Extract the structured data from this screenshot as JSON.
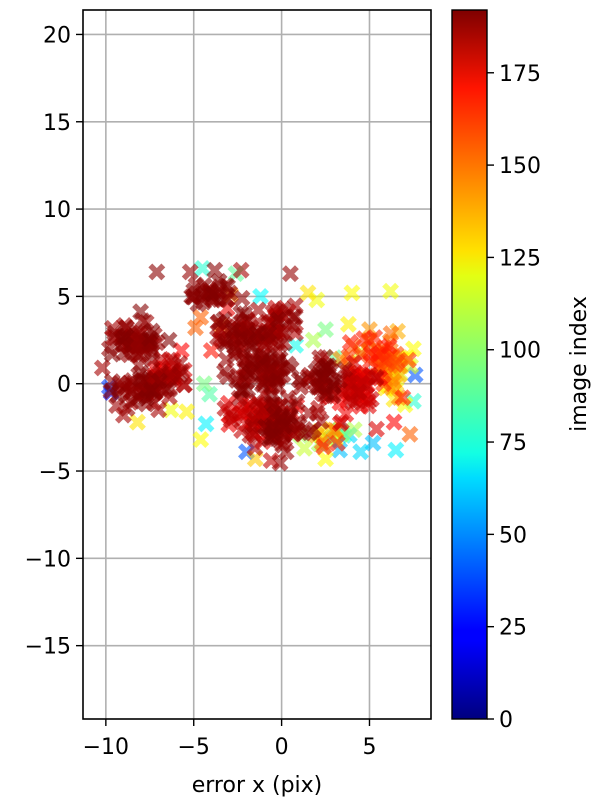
{
  "chart_data": {
    "type": "scatter",
    "title": "",
    "xlabel": "error x (pix)",
    "ylabel": "",
    "xlim": [
      -11.3,
      8.5
    ],
    "ylim": [
      -19.2,
      21.4
    ],
    "x_ticks": [
      -10,
      -5,
      0,
      5
    ],
    "x_tick_labels": [
      "−10",
      "−5",
      "0",
      "5"
    ],
    "y_ticks": [
      20,
      15,
      10,
      5,
      0,
      -5,
      -10,
      -15
    ],
    "y_tick_labels": [
      "20",
      "15",
      "10",
      "5",
      "0",
      "−5",
      "−10",
      "−15"
    ],
    "grid": true,
    "marker": "x",
    "colormap": "jet",
    "colorbar": {
      "label": "image index",
      "range": [
        0,
        192
      ],
      "ticks": [
        0,
        25,
        50,
        75,
        100,
        125,
        150,
        175
      ],
      "tick_labels": [
        "0",
        "25",
        "50",
        "75",
        "100",
        "125",
        "150",
        "175"
      ]
    },
    "points": [
      {
        "x": -7.1,
        "y": 6.4,
        "c": 190
      },
      {
        "x": -5.2,
        "y": 6.4,
        "c": 188
      },
      {
        "x": -3.8,
        "y": 6.5,
        "c": 190
      },
      {
        "x": -2.3,
        "y": 6.5,
        "c": 185
      },
      {
        "x": 0.5,
        "y": 6.3,
        "c": 188
      },
      {
        "x": -4.5,
        "y": 6.6,
        "c": 80
      },
      {
        "x": -2.6,
        "y": 6.3,
        "c": 90
      },
      {
        "x": 4.0,
        "y": 5.2,
        "c": 120
      },
      {
        "x": 6.2,
        "y": 5.3,
        "c": 118
      },
      {
        "x": 1.5,
        "y": 5.2,
        "c": 125
      },
      {
        "x": 2.0,
        "y": 4.8,
        "c": 118
      },
      {
        "x": -1.2,
        "y": 5.0,
        "c": 72
      },
      {
        "x": -2.9,
        "y": 5.1,
        "c": 140
      },
      {
        "x": -9.8,
        "y": 2.0,
        "c": 188
      },
      {
        "x": -10.2,
        "y": 0.9,
        "c": 185
      },
      {
        "x": -9.5,
        "y": 2.9,
        "c": 190
      },
      {
        "x": -9.7,
        "y": -0.5,
        "c": 20
      },
      {
        "x": -9.8,
        "y": -0.2,
        "c": 35
      },
      {
        "x": -9.0,
        "y": -1.8,
        "c": 185
      },
      {
        "x": -8.2,
        "y": -2.2,
        "c": 125
      },
      {
        "x": -6.3,
        "y": -1.5,
        "c": 118
      },
      {
        "x": -5.4,
        "y": -1.6,
        "c": 122
      },
      {
        "x": -4.3,
        "y": -2.3,
        "c": 70
      },
      {
        "x": -4.1,
        "y": -0.6,
        "c": 88
      },
      {
        "x": -4.4,
        "y": 0.0,
        "c": 95
      },
      {
        "x": -5.7,
        "y": 1.9,
        "c": 168
      },
      {
        "x": -4.6,
        "y": 3.8,
        "c": 150
      },
      {
        "x": -3.1,
        "y": 4.3,
        "c": 172
      },
      {
        "x": -2.0,
        "y": -3.9,
        "c": 40
      },
      {
        "x": -1.5,
        "y": -4.3,
        "c": 130
      },
      {
        "x": -0.6,
        "y": -4.4,
        "c": 180
      },
      {
        "x": 1.3,
        "y": -3.7,
        "c": 110
      },
      {
        "x": 2.5,
        "y": -4.3,
        "c": 120
      },
      {
        "x": 3.3,
        "y": -3.8,
        "c": 60
      },
      {
        "x": 4.5,
        "y": -3.9,
        "c": 65
      },
      {
        "x": 5.2,
        "y": -3.4,
        "c": 60
      },
      {
        "x": 6.5,
        "y": -3.8,
        "c": 70
      },
      {
        "x": 7.3,
        "y": -2.9,
        "c": 150
      },
      {
        "x": 7.5,
        "y": -1.0,
        "c": 80
      },
      {
        "x": 7.6,
        "y": 0.5,
        "c": 40
      },
      {
        "x": 7.5,
        "y": 2.0,
        "c": 120
      },
      {
        "x": 6.6,
        "y": 3.0,
        "c": 135
      },
      {
        "x": 5.0,
        "y": 3.1,
        "c": 140
      },
      {
        "x": 3.8,
        "y": 3.4,
        "c": 122
      },
      {
        "x": 2.5,
        "y": 3.1,
        "c": 95
      },
      {
        "x": 1.8,
        "y": 2.5,
        "c": 105
      },
      {
        "x": 0.8,
        "y": 2.2,
        "c": 75
      },
      {
        "x": 3.0,
        "y": 1.5,
        "c": 92
      },
      {
        "x": 4.5,
        "y": 1.8,
        "c": 112
      },
      {
        "x": 6.0,
        "y": 1.2,
        "c": 128
      },
      {
        "x": 4.2,
        "y": 0.5,
        "c": 150
      },
      {
        "x": 5.8,
        "y": 0.0,
        "c": 160
      },
      {
        "x": 6.9,
        "y": -0.8,
        "c": 163
      },
      {
        "x": 6.4,
        "y": -2.2,
        "c": 168
      },
      {
        "x": 5.4,
        "y": -2.6,
        "c": 175
      },
      {
        "x": 3.4,
        "y": -2.2,
        "c": 178
      },
      {
        "x": 2.1,
        "y": -1.4,
        "c": 182
      },
      {
        "x": 4.3,
        "y": -1.0,
        "c": 178
      },
      {
        "x": -4.6,
        "y": -3.2,
        "c": 120
      },
      {
        "x": -4.0,
        "y": 1.9,
        "c": 165
      },
      {
        "x": -4.9,
        "y": 3.2,
        "c": 150
      },
      {
        "x": -3.4,
        "y": 3.3,
        "c": 145
      }
    ],
    "clusters": [
      {
        "x": -8.3,
        "y": 2.4,
        "sx": 1.4,
        "sy": 1.0,
        "n": 55,
        "cmin": 184,
        "cmax": 192
      },
      {
        "x": -8.1,
        "y": -0.4,
        "sx": 1.3,
        "sy": 1.0,
        "n": 50,
        "cmin": 184,
        "cmax": 192
      },
      {
        "x": -6.3,
        "y": 0.6,
        "sx": 1.2,
        "sy": 1.0,
        "n": 30,
        "cmin": 170,
        "cmax": 188
      },
      {
        "x": -4.0,
        "y": 5.2,
        "sx": 1.5,
        "sy": 0.7,
        "n": 30,
        "cmin": 186,
        "cmax": 192
      },
      {
        "x": -2.3,
        "y": 2.8,
        "sx": 1.5,
        "sy": 1.1,
        "n": 55,
        "cmin": 184,
        "cmax": 192
      },
      {
        "x": -1.2,
        "y": 0.6,
        "sx": 1.6,
        "sy": 1.3,
        "n": 70,
        "cmin": 184,
        "cmax": 192
      },
      {
        "x": -0.3,
        "y": 3.2,
        "sx": 1.2,
        "sy": 1.0,
        "n": 35,
        "cmin": 178,
        "cmax": 192
      },
      {
        "x": -1.7,
        "y": -1.9,
        "sx": 1.6,
        "sy": 1.2,
        "n": 50,
        "cmin": 170,
        "cmax": 184
      },
      {
        "x": 0.2,
        "y": -2.3,
        "sx": 1.5,
        "sy": 1.3,
        "n": 55,
        "cmin": 184,
        "cmax": 192
      },
      {
        "x": 2.4,
        "y": 0.3,
        "sx": 1.3,
        "sy": 1.2,
        "n": 35,
        "cmin": 184,
        "cmax": 192
      },
      {
        "x": 4.1,
        "y": -0.6,
        "sx": 1.4,
        "sy": 1.2,
        "n": 45,
        "cmin": 168,
        "cmax": 182
      },
      {
        "x": 5.2,
        "y": 1.6,
        "sx": 1.4,
        "sy": 1.1,
        "n": 40,
        "cmin": 140,
        "cmax": 165
      },
      {
        "x": 6.5,
        "y": 0.5,
        "sx": 0.9,
        "sy": 1.2,
        "n": 25,
        "cmin": 110,
        "cmax": 150
      },
      {
        "x": 2.8,
        "y": -2.9,
        "sx": 1.3,
        "sy": 0.6,
        "n": 20,
        "cmin": 60,
        "cmax": 180
      }
    ]
  }
}
